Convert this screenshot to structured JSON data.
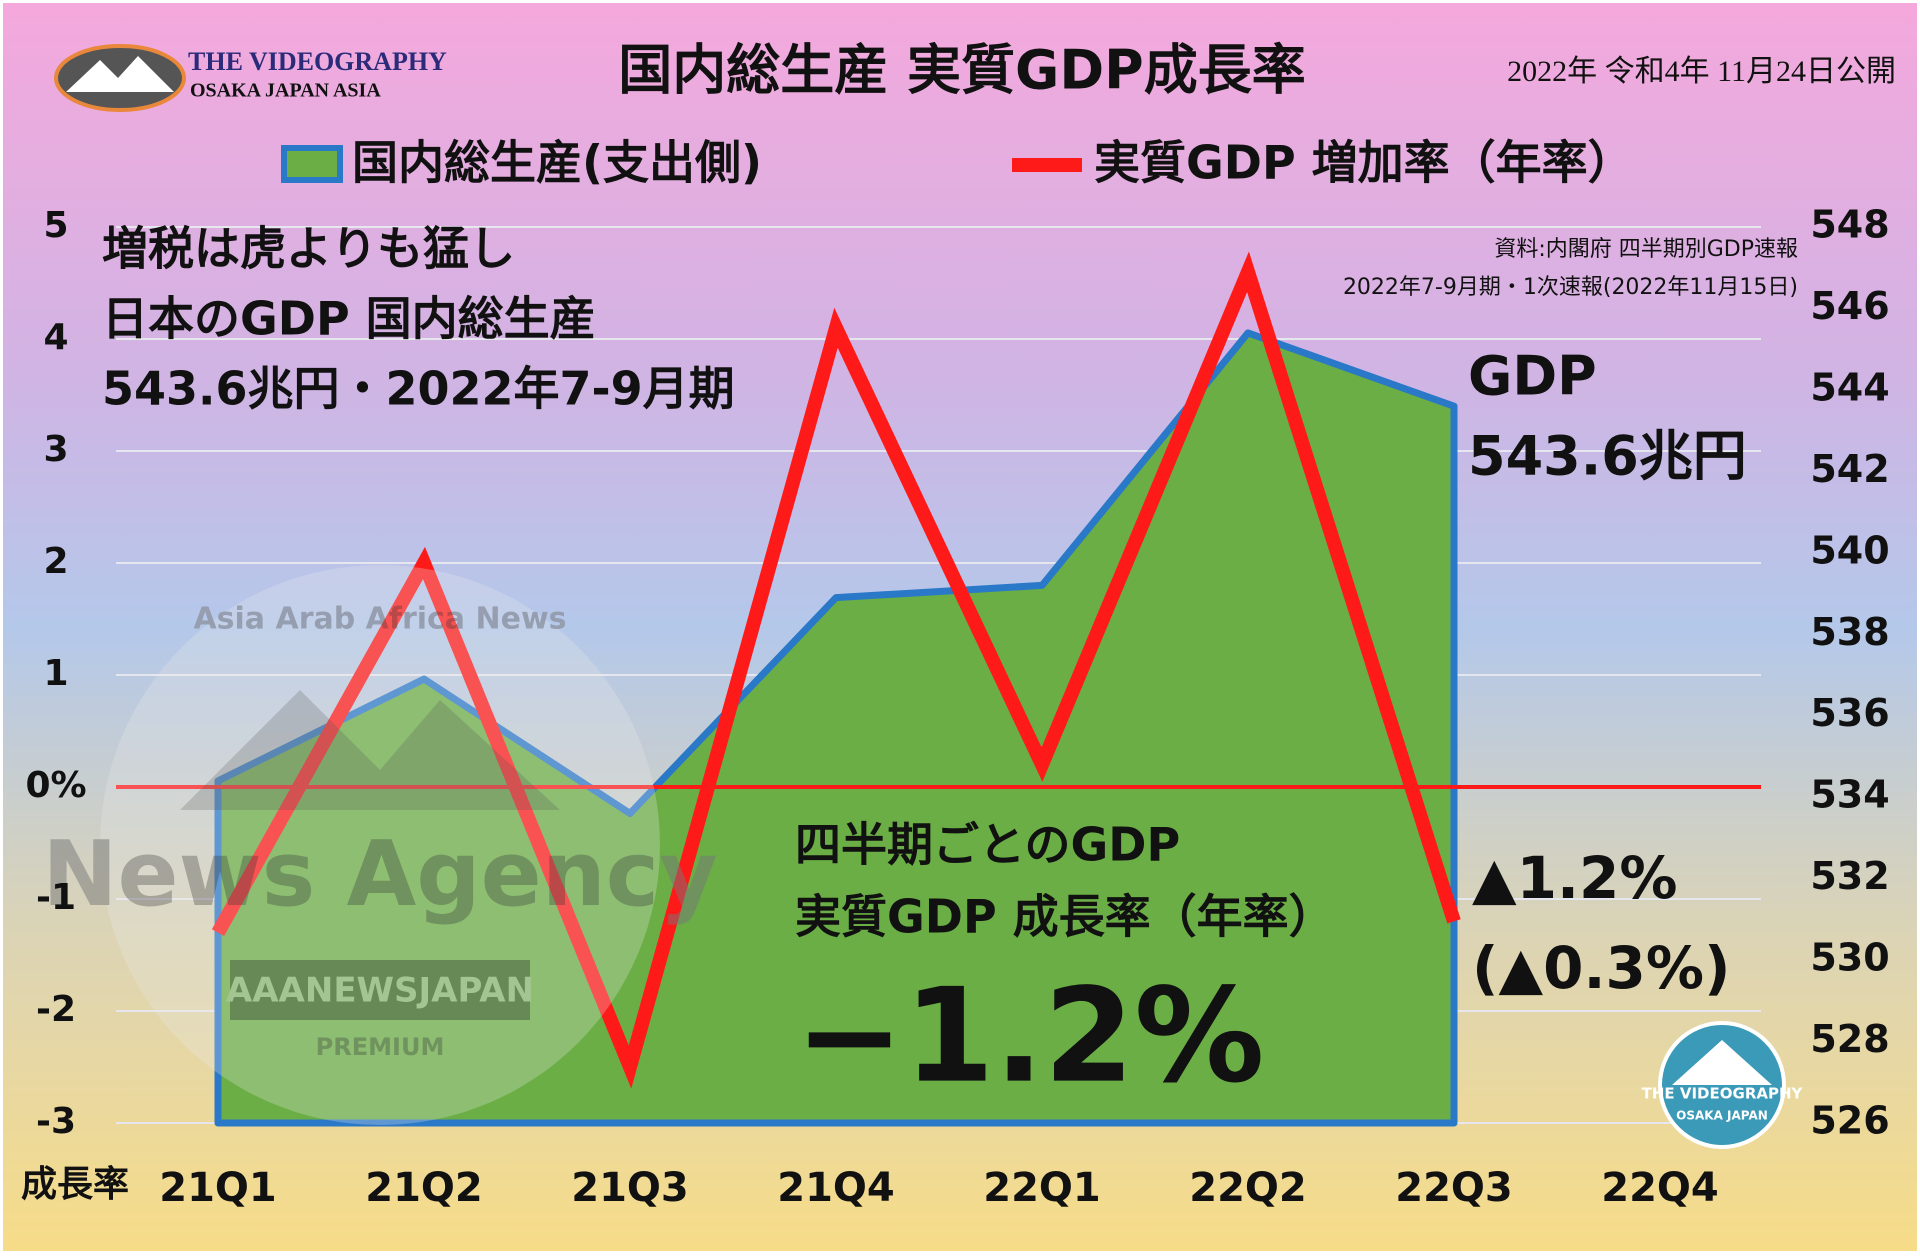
{
  "header": {
    "logo_line1": "THE VIDEOGRAPHY",
    "logo_line2": "OSAKA JAPAN ASIA",
    "date": "2022年 令和4年 11月24日公開"
  },
  "watermark": {
    "ring": "Asia Arab Africa News",
    "main": "News Agency",
    "banner": "AAANEWSJAPAN",
    "sub": "PREMIUM"
  },
  "footer_logo": {
    "line1": "THE VIDEOGRAPHY",
    "line2": "OSAKA JAPAN"
  },
  "chart_data": {
    "type": "combo",
    "title": "国内総生産 実質GDP成長率",
    "categories": [
      "21Q1",
      "21Q2",
      "21Q3",
      "21Q4",
      "22Q1",
      "22Q2",
      "22Q3",
      "22Q4"
    ],
    "series": [
      {
        "name": "国内総生産(支出側)",
        "type": "area",
        "axis": "y2",
        "color": "#6aae45",
        "edge_color": "#2a78c8",
        "values": [
          534.4,
          536.9,
          533.6,
          538.9,
          539.2,
          545.4,
          543.6,
          null
        ]
      },
      {
        "name": "実質GDP 増加率（年率）",
        "type": "line",
        "color": "#ff1a1a",
        "values": [
          -1.3,
          2.0,
          -2.5,
          4.1,
          0.2,
          4.6,
          -1.2,
          null
        ]
      }
    ],
    "ylim": [
      -3,
      5
    ],
    "yticks": [
      -3,
      -2,
      -1,
      {
        "value": 0,
        "label": "0%"
      },
      1,
      2,
      3,
      4,
      5
    ],
    "y2lim": [
      526,
      548
    ],
    "y2ticks": [
      526,
      528,
      530,
      532,
      534,
      536,
      538,
      540,
      542,
      544,
      546,
      548
    ],
    "y_axis_label": "成長率",
    "grid": true,
    "annotations": {
      "headline": [
        "増税は虎よりも猛し",
        "日本のGDP 国内総生産",
        "543.6兆円・2022年7-9月期"
      ],
      "source": [
        "資料:内閣府 四半期別GDP速報",
        "2022年7-9月期・1次速報(2022年11月15日)"
      ],
      "gdp": [
        "GDP",
        "543.6兆円"
      ],
      "center": [
        "四半期ごとのGDP",
        "実質GDP 成長率（年率）",
        "−1.2%"
      ],
      "right": [
        "▲1.2%",
        "(▲0.3%)"
      ]
    }
  }
}
